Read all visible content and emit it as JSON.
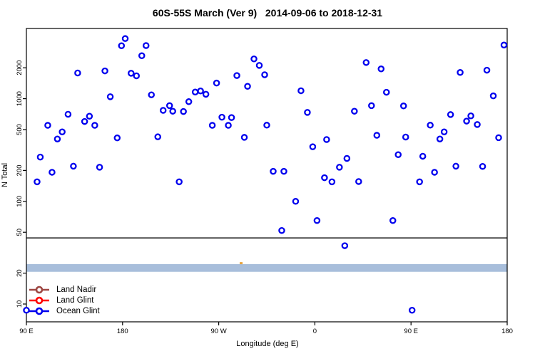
{
  "chart_data": {
    "type": "scatter",
    "title": "60S-55S March (Ver 9)   2014-09-06 to 2018-12-31",
    "xlabel": "Longitude (deg E)",
    "ylabel": "N Total",
    "y_scale": "log",
    "ylim": [
      7,
      4800
    ],
    "x_axis_note": "longitude wraps: axis spans 450 deg starting at 90E",
    "x_ticks": [
      {
        "deg": 0,
        "label": "90 E"
      },
      {
        "deg": 90,
        "label": "180"
      },
      {
        "deg": 180,
        "label": "90 W"
      },
      {
        "deg": 270,
        "label": "0"
      },
      {
        "deg": 360,
        "label": "90 E"
      },
      {
        "deg": 450,
        "label": "180"
      }
    ],
    "y_ticks": [
      {
        "value": 10,
        "label": "10"
      },
      {
        "value": 20,
        "label": "20"
      },
      {
        "value": 50,
        "label": "50"
      },
      {
        "value": 100,
        "label": "100"
      },
      {
        "value": 200,
        "label": "200"
      },
      {
        "value": 500,
        "label": "500"
      },
      {
        "value": 1000,
        "label": "1000"
      },
      {
        "value": 2000,
        "label": "2000"
      }
    ],
    "reference_line": {
      "n": 44,
      "color": "#2b2b2b"
    },
    "band": {
      "n_low": 20.6,
      "n_high": 24.5,
      "color": "#a8bedb"
    },
    "orange_marker": {
      "x_deg": 201,
      "n": 25,
      "color": "#e8a33d"
    },
    "series": [
      {
        "name": "Land Nadir",
        "color": "#9e4742",
        "points": []
      },
      {
        "name": "Land Glint",
        "color": "#ff0000",
        "points": []
      },
      {
        "name": "Ocean Glint",
        "color": "#0000ee",
        "points": [
          [
            92.5,
            3850
          ],
          [
            89,
            3280
          ],
          [
            112,
            3290
          ],
          [
            108,
            2620
          ],
          [
            48,
            1780
          ],
          [
            73.5,
            1865
          ],
          [
            98,
            1770
          ],
          [
            103,
            1670
          ],
          [
            78.5,
            1045
          ],
          [
            117,
            1090
          ],
          [
            128,
            770
          ],
          [
            134,
            855
          ],
          [
            137,
            755
          ],
          [
            147,
            750
          ],
          [
            39,
            705
          ],
          [
            54.5,
            600
          ],
          [
            59,
            675
          ],
          [
            64,
            550
          ],
          [
            20,
            550
          ],
          [
            33.5,
            475
          ],
          [
            29,
            405
          ],
          [
            85,
            415
          ],
          [
            123,
            425
          ],
          [
            13,
            270
          ],
          [
            24,
            192
          ],
          [
            44,
            220
          ],
          [
            68.5,
            215
          ],
          [
            213,
            2440
          ],
          [
            218,
            2110
          ],
          [
            223,
            1710
          ],
          [
            197,
            1680
          ],
          [
            178,
            1420
          ],
          [
            207,
            1320
          ],
          [
            158,
            1160
          ],
          [
            163,
            1190
          ],
          [
            168,
            1105
          ],
          [
            152,
            935
          ],
          [
            257,
            1195
          ],
          [
            263,
            735
          ],
          [
            183,
            660
          ],
          [
            192,
            655
          ],
          [
            174,
            550
          ],
          [
            189,
            550
          ],
          [
            225,
            552
          ],
          [
            204,
            420
          ],
          [
            281,
            400
          ],
          [
            268,
            340
          ],
          [
            300,
            262
          ],
          [
            293,
            215
          ],
          [
            231,
            196
          ],
          [
            241,
            196
          ],
          [
            447,
            3330
          ],
          [
            318,
            2250
          ],
          [
            332,
            1950
          ],
          [
            406,
            1800
          ],
          [
            431,
            1895
          ],
          [
            337,
            1155
          ],
          [
            437,
            1065
          ],
          [
            323,
            855
          ],
          [
            307,
            755
          ],
          [
            353,
            850
          ],
          [
            397,
            700
          ],
          [
            416,
            680
          ],
          [
            412,
            605
          ],
          [
            422,
            560
          ],
          [
            378,
            552
          ],
          [
            391,
            475
          ],
          [
            387,
            405
          ],
          [
            328,
            440
          ],
          [
            355,
            423
          ],
          [
            442,
            417
          ],
          [
            348,
            285
          ],
          [
            371,
            275
          ],
          [
            402,
            220
          ],
          [
            427,
            219
          ],
          [
            382,
            192
          ],
          [
            10,
            155
          ],
          [
            143,
            155
          ],
          [
            279,
            170
          ],
          [
            286,
            155
          ],
          [
            252,
            100
          ],
          [
            272,
            65
          ],
          [
            239,
            52
          ],
          [
            298,
            37
          ],
          [
            311,
            156
          ],
          [
            368,
            155
          ],
          [
            343,
            65
          ],
          [
            361,
            8.7
          ],
          [
            0,
            8.7
          ]
        ]
      }
    ],
    "legend_position": "bottom-left"
  }
}
